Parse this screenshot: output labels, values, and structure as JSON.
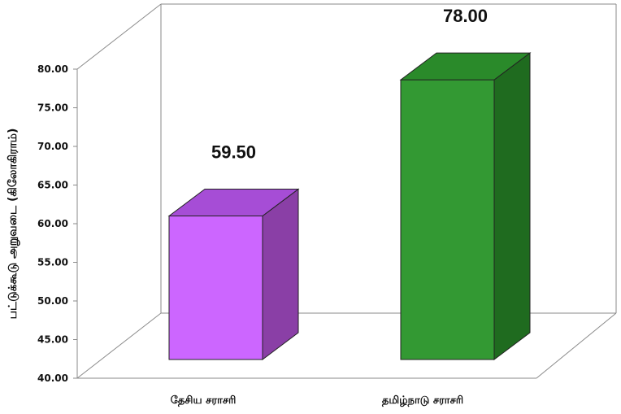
{
  "chart_data": {
    "type": "bar",
    "categories": [
      "தேசிய சராசரி",
      "தமிழ்நாடு சராசரி"
    ],
    "values": [
      59.5,
      78.0
    ],
    "data_labels": [
      "59.50",
      "78.00"
    ],
    "ylabel": "பட்டுக்கூடு அறுவடை (கிலோகிராம்)",
    "ylim": [
      40,
      80
    ],
    "yticks": [
      "40.00",
      "45.00",
      "50.00",
      "55.00",
      "60.00",
      "65.00",
      "70.00",
      "75.00",
      "80.00"
    ],
    "style": "3d-bar",
    "grid": false,
    "legend": "none",
    "colors": {
      "bar1_front": "#cc66ff",
      "bar1_side": "#8a3fa6",
      "bar1_top": "#a64dd6",
      "bar2_front": "#339933",
      "bar2_side": "#1f6b1f",
      "bar2_top": "#2a8a2a"
    }
  }
}
